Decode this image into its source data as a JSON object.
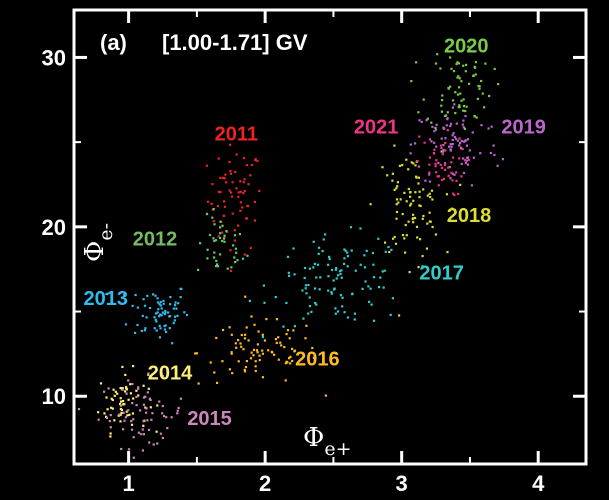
{
  "chart_data": {
    "type": "scatter",
    "panel_label": "(a)",
    "title": "[1.00-1.71] GV",
    "xlabel": {
      "symbol": "Φ",
      "subscript": "e+"
    },
    "ylabel": {
      "symbol": "Φ",
      "subscript": "e-"
    },
    "xlim": [
      0.6,
      4.35
    ],
    "ylim": [
      6.0,
      32.8
    ],
    "xticks": [
      1,
      2,
      3,
      4
    ],
    "yticks": [
      10,
      20,
      30
    ],
    "xtick_labels": [
      "1",
      "2",
      "3",
      "4"
    ],
    "ytick_labels": [
      "10",
      "20",
      "30"
    ],
    "grid": false,
    "series": [
      {
        "name": "2011",
        "color": "#ee2222",
        "cx": 1.78,
        "cy": 21.6,
        "sx": 0.1,
        "sy": 1.6,
        "n": 70
      },
      {
        "name": "2012",
        "color": "#66cc66",
        "cx": 1.68,
        "cy": 18.8,
        "sx": 0.09,
        "sy": 0.9,
        "n": 40
      },
      {
        "name": "2013",
        "color": "#33bbee",
        "cx": 1.22,
        "cy": 15.0,
        "sx": 0.11,
        "sy": 0.9,
        "n": 70
      },
      {
        "name": "2014",
        "color": "#ffee77",
        "cx": 0.96,
        "cy": 9.7,
        "sx": 0.09,
        "sy": 0.9,
        "n": 60
      },
      {
        "name": "2015",
        "color": "#cc88bb",
        "cx": 1.1,
        "cy": 9.0,
        "sx": 0.16,
        "sy": 1.0,
        "n": 70
      },
      {
        "name": "2016",
        "color": "#ffbb22",
        "cx": 1.95,
        "cy": 12.6,
        "sx": 0.22,
        "sy": 1.0,
        "n": 85
      },
      {
        "name": "2017",
        "color": "#33cccc",
        "cx": 2.55,
        "cy": 16.8,
        "sx": 0.25,
        "sy": 1.3,
        "n": 110
      },
      {
        "name": "2018",
        "color": "#dddd33",
        "cx": 3.05,
        "cy": 21.2,
        "sx": 0.12,
        "sy": 1.6,
        "n": 85
      },
      {
        "name": "2019",
        "color": "#bb66cc",
        "cx": 3.4,
        "cy": 24.8,
        "sx": 0.16,
        "sy": 1.3,
        "n": 90
      },
      {
        "name": "2020",
        "color": "#77cc44",
        "cx": 3.42,
        "cy": 28.3,
        "sx": 0.12,
        "sy": 1.3,
        "n": 70
      },
      {
        "name": "2021",
        "color": "#ee3388",
        "cx": 3.28,
        "cy": 23.6,
        "sx": 0.09,
        "sy": 0.9,
        "n": 45
      }
    ],
    "year_labels": [
      {
        "text": "2011",
        "color": "#ee2222",
        "x": 1.63,
        "y": 25.1
      },
      {
        "text": "2012",
        "color": "#77bb66",
        "x": 1.03,
        "y": 18.9
      },
      {
        "text": "2013",
        "color": "#33bbee",
        "x": 0.67,
        "y": 15.4
      },
      {
        "text": "2014",
        "color": "#ffee77",
        "x": 1.14,
        "y": 11.0
      },
      {
        "text": "2015",
        "color": "#cc88bb",
        "x": 1.43,
        "y": 8.3
      },
      {
        "text": "2016",
        "color": "#ffbb22",
        "x": 2.22,
        "y": 11.8
      },
      {
        "text": "2017",
        "color": "#33cccc",
        "x": 3.13,
        "y": 16.9
      },
      {
        "text": "2018",
        "color": "#dddd33",
        "x": 3.33,
        "y": 20.3
      },
      {
        "text": "2019",
        "color": "#bb66cc",
        "x": 3.73,
        "y": 25.5
      },
      {
        "text": "2020",
        "color": "#77cc44",
        "x": 3.31,
        "y": 30.3
      },
      {
        "text": "2021",
        "color": "#ee3388",
        "x": 2.65,
        "y": 25.5
      }
    ]
  }
}
